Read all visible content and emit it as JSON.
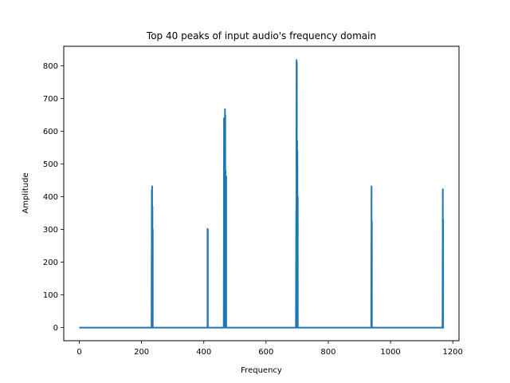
{
  "chart_data": {
    "type": "line",
    "title": "Top 40 peaks of input audio's frequency domain",
    "xlabel": "Frequency",
    "ylabel": "Amplitude",
    "xlim": [
      -50,
      1220
    ],
    "ylim": [
      -40,
      860
    ],
    "x_ticks": [
      0,
      200,
      400,
      600,
      800,
      1000,
      1200
    ],
    "y_ticks": [
      0,
      100,
      200,
      300,
      400,
      500,
      600,
      700,
      800
    ],
    "grid": false,
    "legend": "none",
    "series": [
      {
        "color": "#1f77b4",
        "x": [
          0,
          232,
          233,
          233,
          234,
          234,
          235,
          235,
          236,
          236,
          237,
          412,
          412,
          413,
          413,
          414,
          464,
          465,
          465,
          466,
          466,
          467,
          467,
          468,
          468,
          469,
          469,
          470,
          470,
          471,
          471,
          472,
          472,
          473,
          696,
          697,
          697,
          698,
          698,
          699,
          699,
          700,
          700,
          701,
          701,
          702,
          702,
          703,
          938,
          939,
          939,
          940,
          940,
          941,
          1167,
          1168,
          1168,
          1169,
          1169,
          1170,
          1172
        ],
        "y": [
          0,
          0,
          420,
          0,
          432,
          0,
          370,
          0,
          300,
          0,
          0,
          0,
          302,
          300,
          0,
          0,
          0,
          640,
          0,
          630,
          0,
          600,
          0,
          668,
          0,
          650,
          0,
          480,
          0,
          365,
          0,
          462,
          0,
          0,
          0,
          357,
          0,
          818,
          0,
          810,
          0,
          570,
          0,
          540,
          0,
          400,
          0,
          0,
          0,
          432,
          0,
          325,
          0,
          0,
          0,
          423,
          0,
          330,
          0,
          0,
          0
        ]
      }
    ]
  }
}
